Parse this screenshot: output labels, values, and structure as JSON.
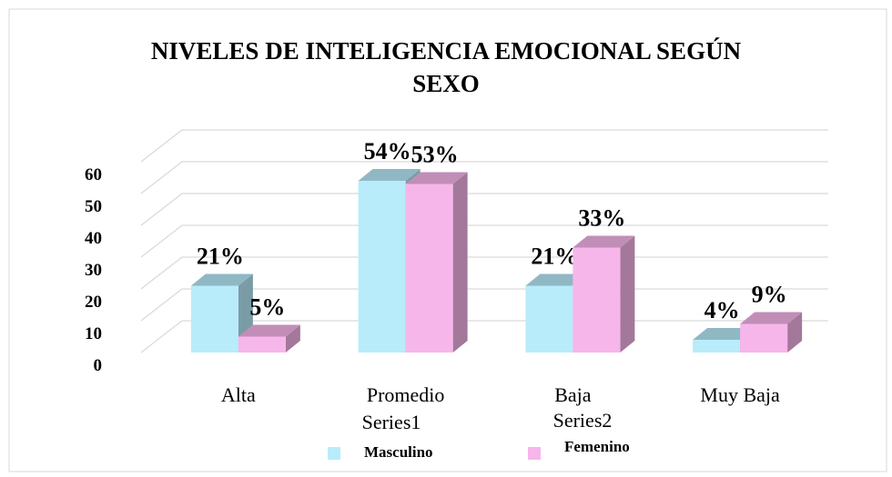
{
  "chart_data": {
    "type": "bar3d",
    "title": "NIVELES DE INTELIGENCIA EMOCIONAL SEGÚN SEXO",
    "categories": [
      "Alta",
      "Promedio",
      "Baja",
      "Muy Baja"
    ],
    "series": [
      {
        "name": "Masculino",
        "color": "#b8ecfb",
        "values": [
          21,
          54,
          21,
          4
        ],
        "value_labels": [
          "21%",
          "54%",
          "21%",
          "4%"
        ]
      },
      {
        "name": "Femenino",
        "color": "#f7b6ea",
        "values": [
          5,
          53,
          33,
          9
        ],
        "value_labels": [
          "5%",
          "53%",
          "33%",
          "9%"
        ]
      }
    ],
    "annotations": [
      "Series1",
      "Series2"
    ],
    "ylim": [
      0,
      60
    ],
    "yticks": [
      0,
      10,
      20,
      30,
      40,
      50,
      60
    ],
    "grid": true,
    "legend": "bottom"
  }
}
